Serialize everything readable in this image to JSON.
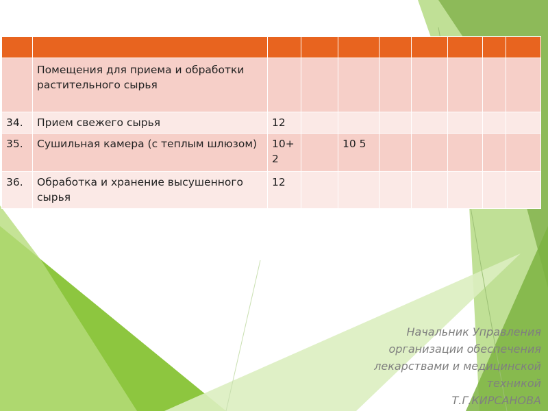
{
  "colors": {
    "header": "#e8641f",
    "row_dark": "#f6cfc8",
    "row_light": "#fbe9e6",
    "accent_green": "#8dc63f"
  },
  "table": {
    "section_title": "Помещения для приема и обработки растительного сырья",
    "rows": [
      {
        "num": "34.",
        "name": "Прием свежего сырья",
        "c3": "12",
        "c5": ""
      },
      {
        "num": "35.",
        "name": "Сушильная камера (с теплым шлюзом)",
        "c3": "10+2",
        "c5": "10 5"
      },
      {
        "num": "36.",
        "name": "Обработка и хранение высушенного сырья",
        "c3": "12",
        "c5": ""
      }
    ]
  },
  "signature": {
    "line1": "Начальник Управления",
    "line2": "организации обеспечения",
    "line3": "лекарствами и медицинской",
    "line4": "техникой",
    "line5": "Т.Г.КИРСАНОВА"
  }
}
